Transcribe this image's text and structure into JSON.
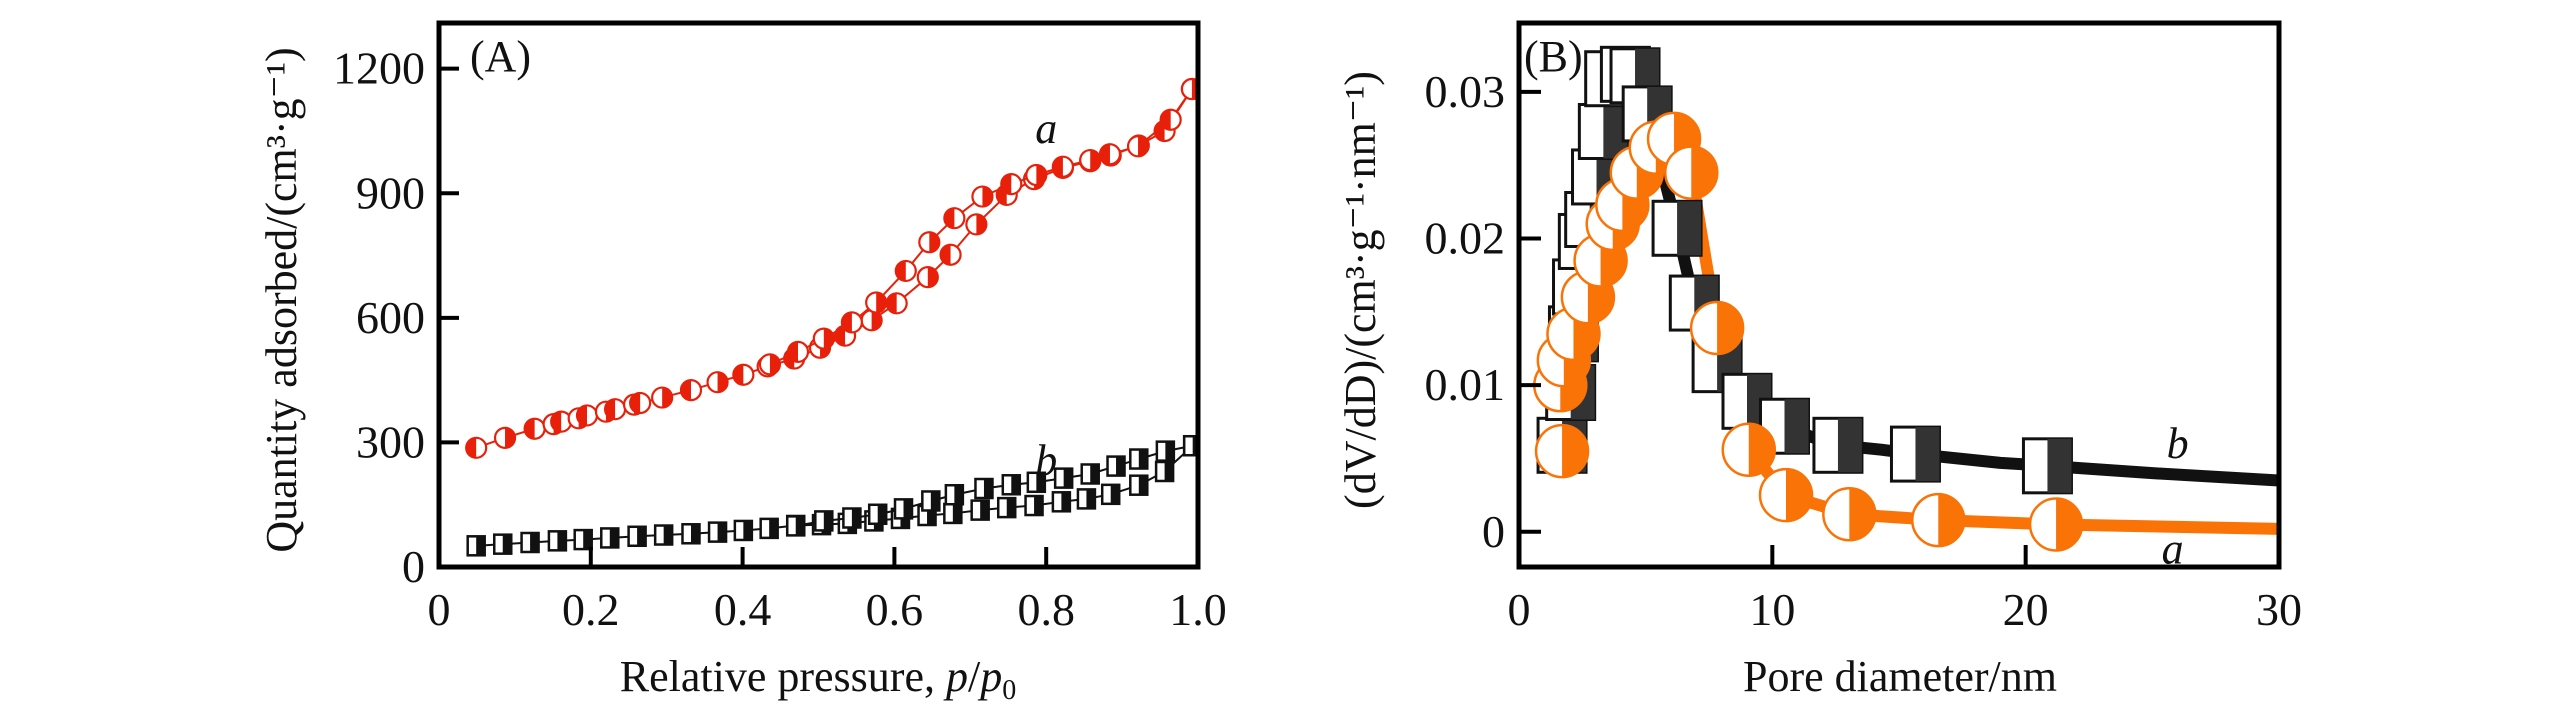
{
  "chart_data": [
    {
      "panel": "(A)",
      "type": "line",
      "xlabel": "Relative pressure, p/p₀",
      "xlabel_parts": {
        "main": "Relative pressure, ",
        "var1": "p",
        "slash": "/",
        "var2": "p",
        "sub": "0"
      },
      "ylabel": "Quantity adsorbed/(cm³·g⁻¹)",
      "xlim": [
        0,
        1.0
      ],
      "ylim": [
        0,
        1310
      ],
      "xticks": [
        0,
        0.2,
        0.4,
        0.6,
        0.8,
        1.0
      ],
      "xtick_labels": [
        "0",
        "0.2",
        "0.4",
        "0.6",
        "0.8",
        "1.0"
      ],
      "yticks": [
        0,
        300,
        600,
        900,
        1200
      ],
      "ytick_labels": [
        "0",
        "300",
        "600",
        "900",
        "1200"
      ],
      "grid": false,
      "series": [
        {
          "name": "a",
          "label": "a",
          "color": "#e8200a",
          "marker": "half-filled-circle",
          "branches": [
            {
              "name": "adsorption",
              "x": [
                0.049,
                0.087,
                0.126,
                0.151,
                0.161,
                0.184,
                0.195,
                0.22,
                0.232,
                0.257,
                0.265,
                0.294,
                0.332,
                0.367,
                0.401,
                0.433,
                0.468,
                0.502,
                0.535,
                0.57,
                0.603,
                0.644,
                0.674,
                0.708,
                0.748,
                0.784,
                0.822,
                0.858,
                0.885,
                0.922,
                0.956,
                0.992
              ],
              "y": [
                287,
                311,
                333,
                344,
                350,
                358,
                365,
                374,
                380,
                391,
                395,
                408,
                426,
                445,
                463,
                483,
                502,
                528,
                557,
                594,
                635,
                698,
                752,
                825,
                896,
                934,
                961,
                977,
                991,
                1015,
                1050,
                1151
              ]
            },
            {
              "name": "desorption",
              "x": [
                0.992,
                0.964,
                0.921,
                0.884,
                0.858,
                0.822,
                0.787,
                0.754,
                0.716,
                0.679,
                0.646,
                0.615,
                0.576,
                0.544,
                0.507,
                0.473,
                0.436
              ],
              "y": [
                1151,
                1077,
                1013,
                994,
                980,
                964,
                944,
                922,
                892,
                840,
                782,
                713,
                637,
                589,
                550,
                518,
                488
              ]
            }
          ]
        },
        {
          "name": "b",
          "label": "b",
          "color": "#111111",
          "marker": "half-filled-square",
          "branches": [
            {
              "name": "adsorption",
              "x": [
                0.049,
                0.084,
                0.12,
                0.156,
                0.19,
                0.225,
                0.261,
                0.296,
                0.332,
                0.367,
                0.401,
                0.435,
                0.47,
                0.504,
                0.538,
                0.573,
                0.608,
                0.643,
                0.677,
                0.713,
                0.748,
                0.784,
                0.82,
                0.853,
                0.885,
                0.922,
                0.956,
                0.993
              ],
              "y": [
                51,
                55,
                59,
                63,
                66,
                70,
                74,
                77,
                80,
                84,
                88,
                93,
                100,
                102,
                105,
                111,
                117,
                124,
                129,
                137,
                143,
                148,
                157,
                164,
                175,
                197,
                230,
                292
              ]
            },
            {
              "name": "desorption",
              "x": [
                0.993,
                0.957,
                0.922,
                0.892,
                0.858,
                0.823,
                0.787,
                0.754,
                0.718,
                0.679,
                0.648,
                0.612,
                0.578,
                0.544,
                0.507,
                0.47
              ],
              "y": [
                292,
                279,
                260,
                243,
                224,
                214,
                204,
                198,
                189,
                174,
                159,
                140,
                127,
                118,
                111,
                99
              ]
            }
          ]
        }
      ],
      "annotations": [
        {
          "text": "a",
          "x": 0.8,
          "y": 1055
        },
        {
          "text": "b",
          "x": 0.8,
          "y": 255
        }
      ]
    },
    {
      "panel": "(B)",
      "type": "line",
      "xlabel": "Pore diameter/nm",
      "ylabel": "(dV/dD)/(cm³·g⁻¹·nm⁻¹)",
      "xlim": [
        0,
        30
      ],
      "ylim": [
        -0.0024,
        0.0347
      ],
      "xticks": [
        0,
        10,
        20,
        30
      ],
      "xtick_labels": [
        "0",
        "10",
        "20",
        "30"
      ],
      "yticks": [
        0,
        0.01,
        0.02,
        0.03
      ],
      "ytick_labels": [
        "0",
        "0.01",
        "0.02",
        "0.03"
      ],
      "grid": false,
      "series": [
        {
          "name": "b",
          "label": "b",
          "color": "#111111",
          "marker_fill": "#333333",
          "marker": "half-filled-square",
          "x": [
            1.7,
            2.04,
            2.15,
            2.31,
            2.54,
            2.79,
            3.06,
            3.33,
            3.58,
            4.2,
            4.58,
            5.06,
            5.6,
            6.24,
            6.92,
            7.82,
            9.0,
            10.48,
            11.5,
            12.59,
            14.3,
            15.65,
            19.0,
            20.86,
            25.0,
            30.0
          ],
          "y": [
            0.0059,
            0.0095,
            0.0135,
            0.0167,
            0.0198,
            0.0213,
            0.0242,
            0.0273,
            0.0309,
            0.0312,
            0.0311,
            0.0285,
            0.025,
            0.0207,
            0.0156,
            0.0114,
            0.0089,
            0.0072,
            0.0065,
            0.0059,
            0.0056,
            0.0053,
            0.0047,
            0.0045,
            0.004,
            0.0035
          ],
          "marker_x": [
            1.7,
            2.04,
            2.15,
            2.31,
            2.54,
            2.79,
            3.06,
            3.33,
            3.58,
            4.2,
            4.58,
            5.06,
            6.24,
            6.92,
            7.82,
            9.0,
            10.48,
            12.59,
            15.65,
            20.86
          ]
        },
        {
          "name": "a",
          "label": "a",
          "color": "#f97306",
          "marker": "half-filled-circle",
          "x": [
            1.7,
            1.63,
            1.77,
            2.15,
            2.72,
            3.22,
            3.7,
            4.08,
            4.65,
            5.4,
            6.12,
            6.8,
            7.82,
            9.07,
            10.54,
            13.04,
            16.55,
            21.2,
            30.0
          ],
          "y": [
            0.0055,
            0.01,
            0.0117,
            0.0135,
            0.016,
            0.0185,
            0.021,
            0.0223,
            0.0245,
            0.0262,
            0.0268,
            0.0245,
            0.0139,
            0.0056,
            0.0025,
            0.0012,
            0.0008,
            0.0005,
            0.0002
          ],
          "marker_x": [
            1.7,
            1.63,
            1.77,
            2.15,
            2.72,
            3.22,
            3.7,
            4.08,
            4.65,
            5.4,
            6.12,
            6.8,
            7.82,
            9.07,
            10.54,
            13.04,
            16.55,
            21.2
          ]
        }
      ],
      "annotations": [
        {
          "text": "b",
          "x": 26.0,
          "y": 0.006
        },
        {
          "text": "a",
          "x": 25.8,
          "y": -0.0012
        }
      ]
    }
  ]
}
